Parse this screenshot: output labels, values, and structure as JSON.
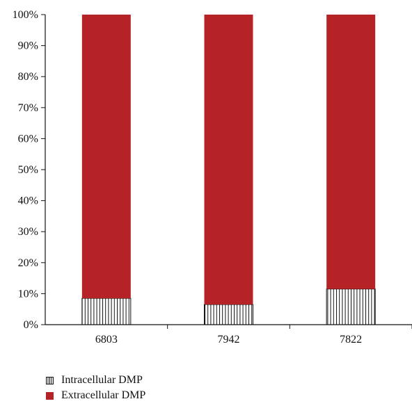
{
  "chart_data": {
    "type": "bar",
    "stacked": true,
    "percent_stacked": true,
    "categories": [
      "6803",
      "7942",
      "7822"
    ],
    "series": [
      {
        "name": "Intracellular DMP",
        "values": [
          8.5,
          6.5,
          11.5
        ],
        "color": "#ffffff",
        "pattern": "vertical-hatch"
      },
      {
        "name": "Extracellular DMP",
        "values": [
          91.5,
          93.5,
          88.5
        ],
        "color": "#b52327"
      }
    ],
    "ylim": [
      0,
      100
    ],
    "yticks": [
      "0%",
      "10%",
      "20%",
      "30%",
      "40%",
      "50%",
      "60%",
      "70%",
      "80%",
      "90%",
      "100%"
    ],
    "title": "",
    "xlabel": "",
    "ylabel": "",
    "grid": false,
    "legend_position": "bottom-left"
  },
  "legend": {
    "items": [
      {
        "label": "Intracellular DMP"
      },
      {
        "label": "Extracellular DMP"
      }
    ]
  }
}
